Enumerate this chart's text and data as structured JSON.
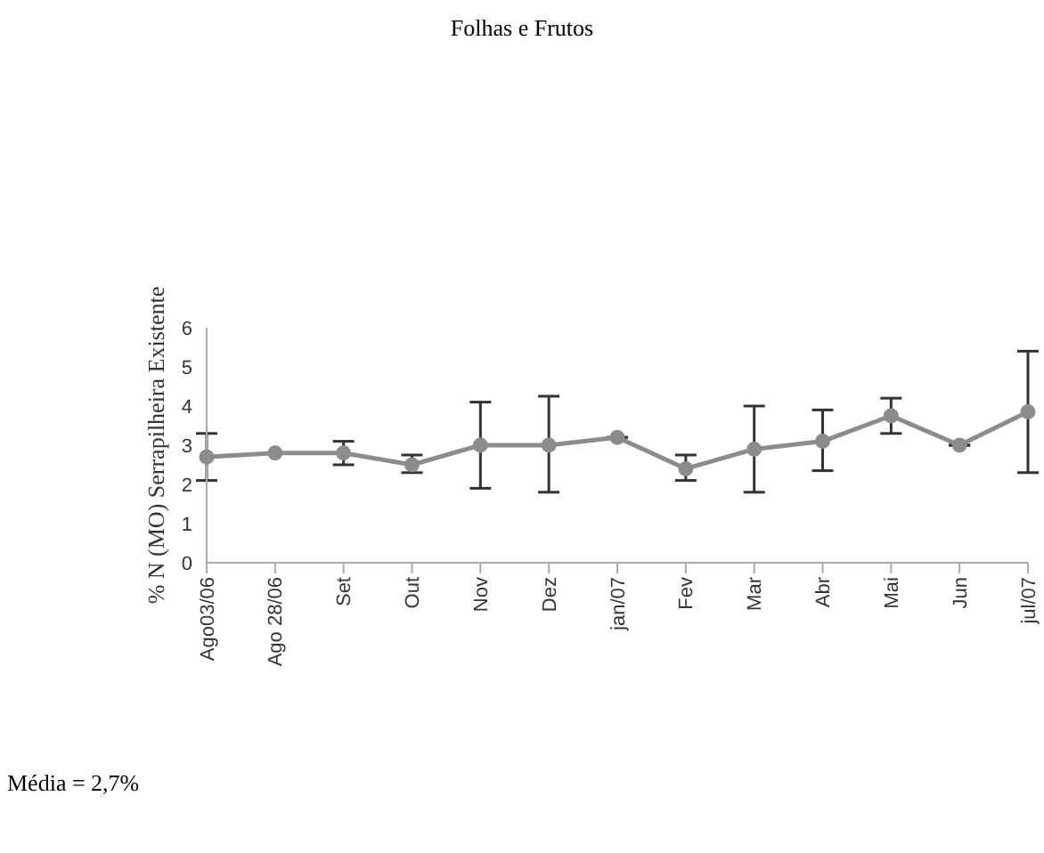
{
  "chart_data": {
    "type": "line",
    "title": "Folhas e Frutos",
    "ylabel": "% N (MO) Serrapilheira Existente",
    "categories": [
      "Ago03/06",
      "Ago 28/06",
      "Set",
      "Out",
      "Nov",
      "Dez",
      "jan/07",
      "Fev",
      "Mar",
      "Abr",
      "Mai",
      "Jun",
      "jul/07"
    ],
    "series": [
      {
        "color": "#8c8c8c",
        "values": [
          2.7,
          2.8,
          2.8,
          2.5,
          3.0,
          3.0,
          3.2,
          2.4,
          2.9,
          3.1,
          3.75,
          3.0,
          3.85
        ],
        "errors": [
          [
            2.1,
            3.3
          ],
          null,
          [
            2.5,
            3.1
          ],
          [
            2.3,
            2.75
          ],
          [
            1.9,
            4.1
          ],
          [
            1.8,
            4.25
          ],
          null,
          [
            2.1,
            2.75
          ],
          [
            1.8,
            4.0
          ],
          [
            2.35,
            3.9
          ],
          [
            3.3,
            4.2
          ],
          null,
          [
            2.3,
            5.4
          ]
        ]
      }
    ],
    "ylim": [
      0,
      6
    ],
    "yticks": [
      0,
      1,
      2,
      3,
      4,
      5,
      6
    ],
    "grid": false,
    "legend": false,
    "marker": "circle",
    "line_style": "solid",
    "annotations": [
      "Média = 2,7%"
    ]
  }
}
